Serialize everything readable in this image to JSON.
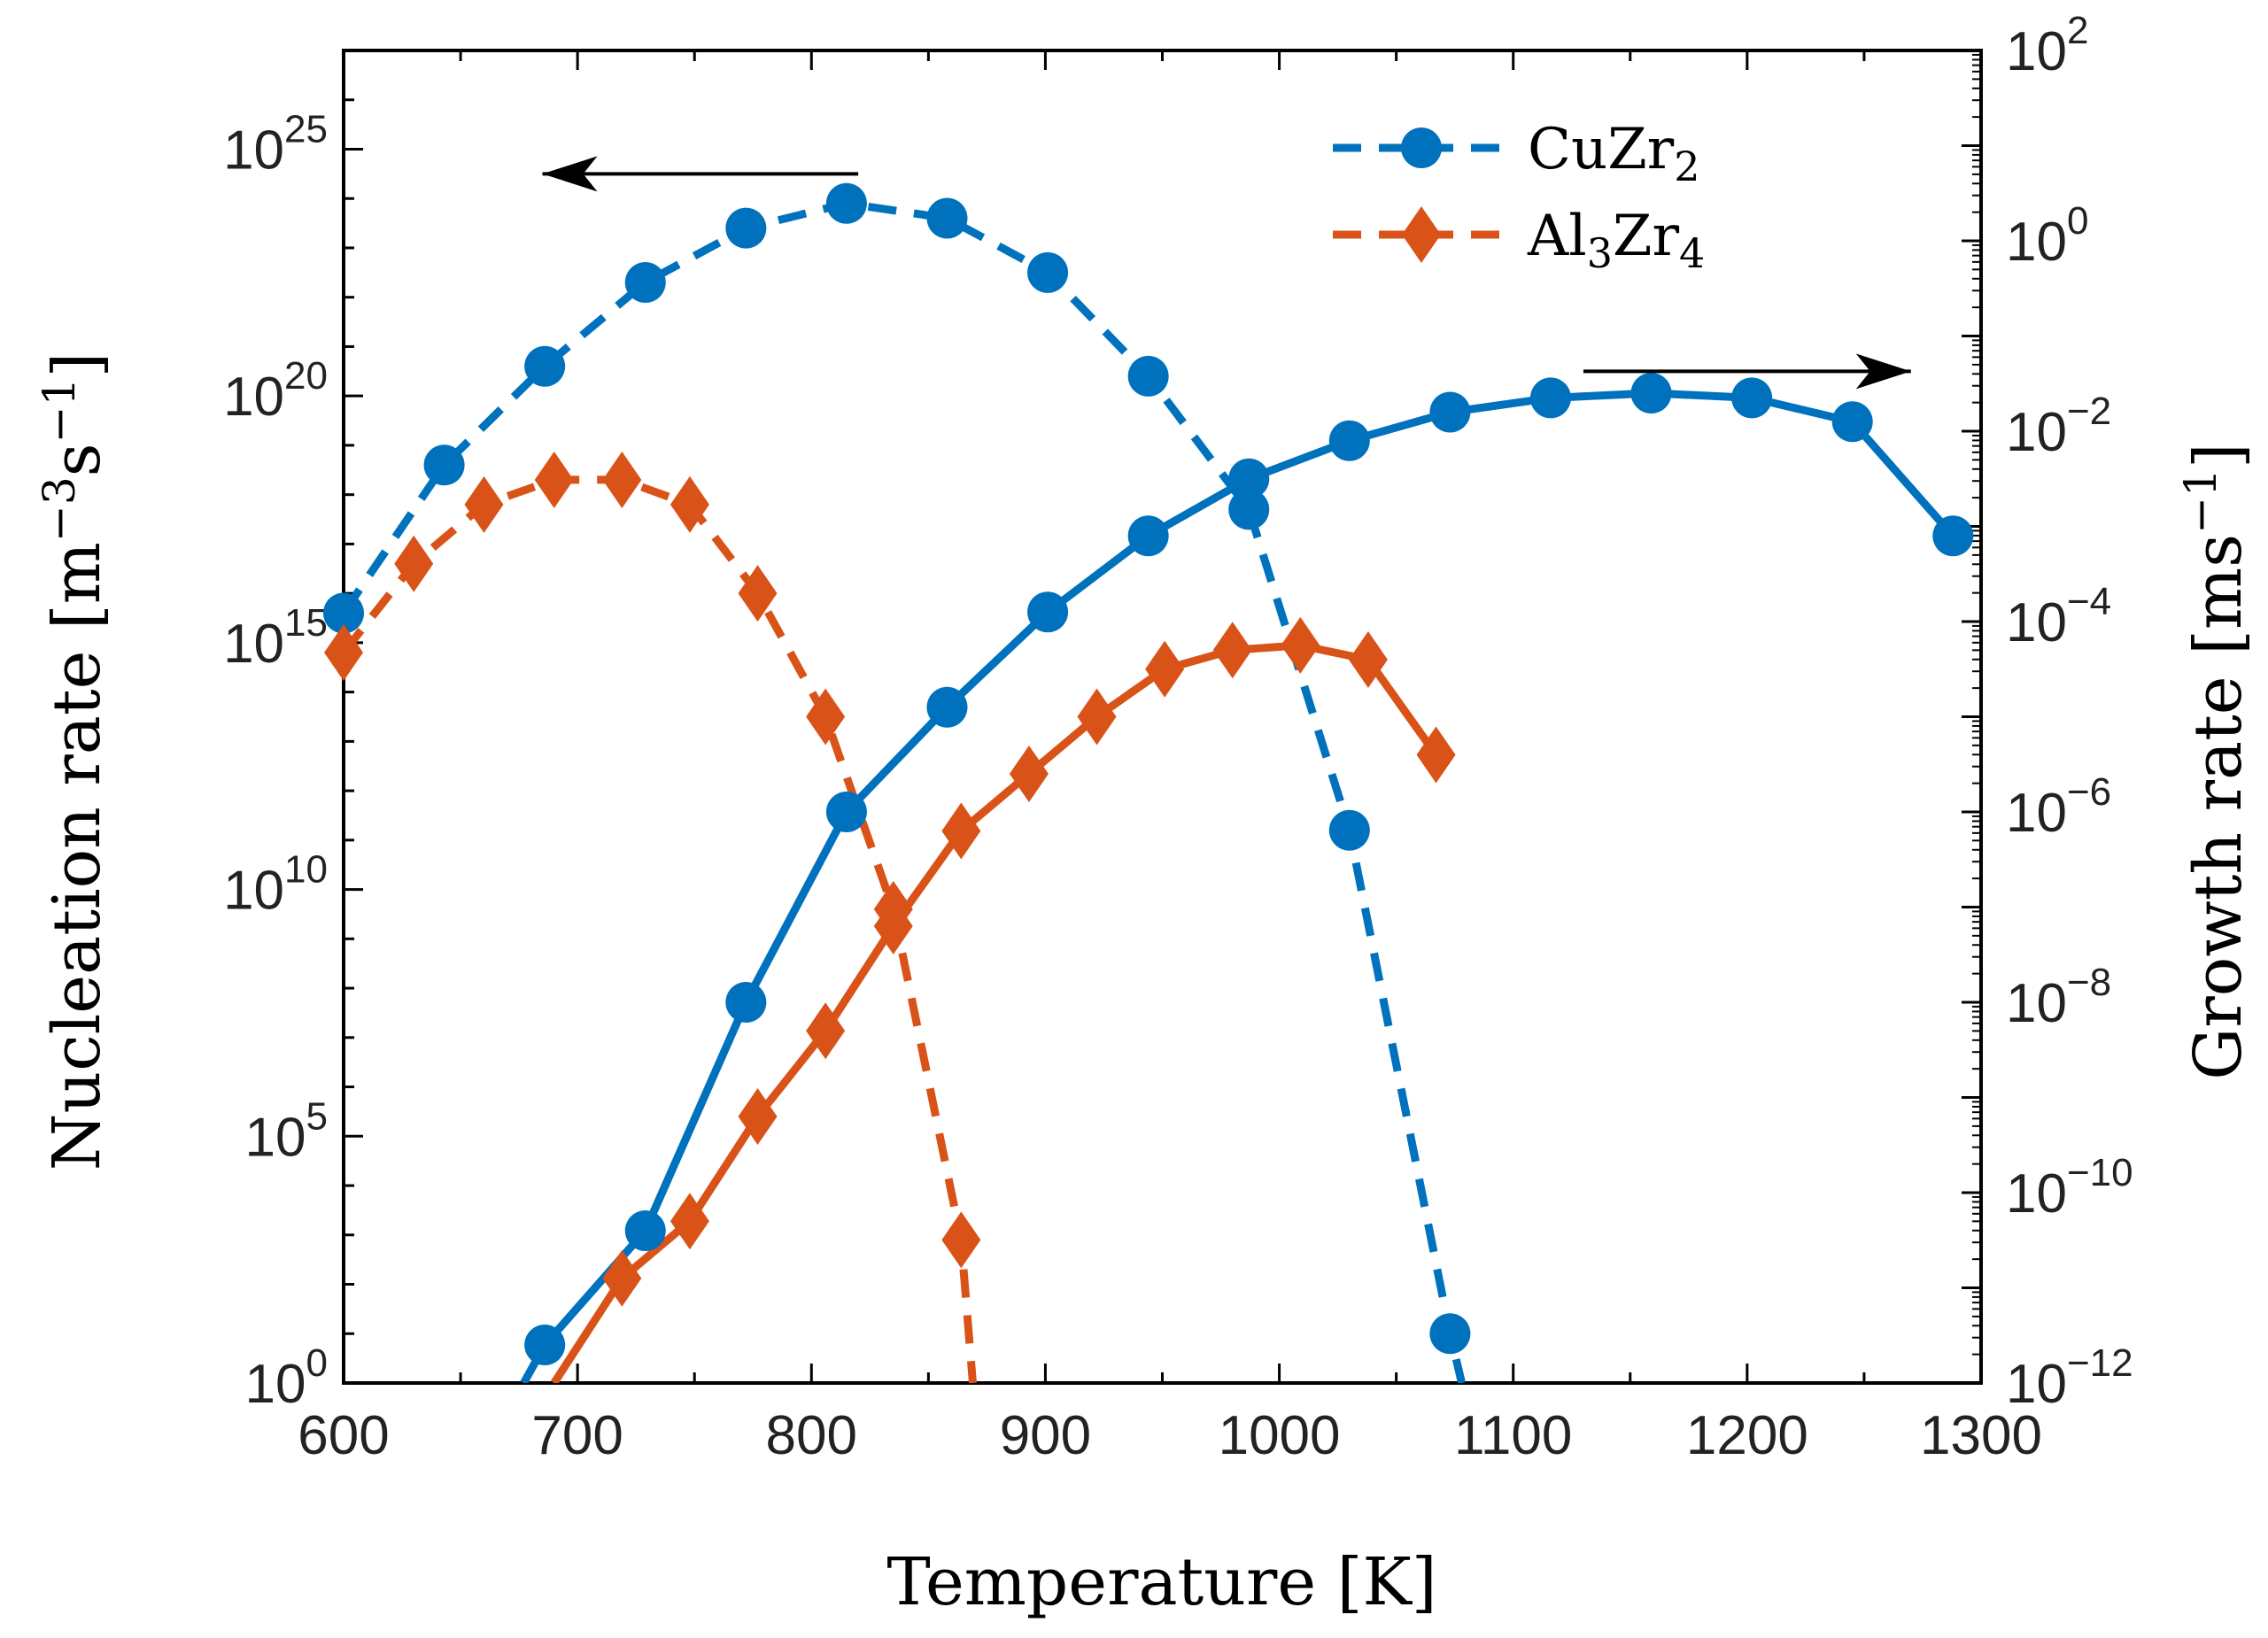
{
  "colors": {
    "cuzr2": "#0072BD",
    "al3zr4": "#D95319",
    "axis": "#000000"
  },
  "chart_data": {
    "type": "line",
    "xlabel": "Temperature [K]",
    "ylabel_left": {
      "base": "Nucleation rate [m",
      "sup1": "−3",
      "mid": "s",
      "sup2": "−1",
      "end": "]"
    },
    "ylabel_right": {
      "base": "Growth rate [ms",
      "sup1": "−1",
      "end": "]"
    },
    "xlim": [
      600,
      1300
    ],
    "ylim_left": [
      0,
      27
    ],
    "ylim_right": [
      -12,
      2
    ],
    "yscale": "log",
    "grid": false,
    "legend_position": "top-right",
    "x_ticks": [
      "600",
      "700",
      "800",
      "900",
      "1000",
      "1100",
      "1200",
      "1300"
    ],
    "y_ticks_left": [
      {
        "base": "10",
        "exp": "0",
        "value": 0
      },
      {
        "base": "10",
        "exp": "5",
        "value": 5
      },
      {
        "base": "10",
        "exp": "10",
        "value": 10
      },
      {
        "base": "10",
        "exp": "15",
        "value": 15
      },
      {
        "base": "10",
        "exp": "20",
        "value": 20
      },
      {
        "base": "10",
        "exp": "25",
        "value": 25
      }
    ],
    "y_ticks_right": [
      {
        "base": "10",
        "exp": "−12",
        "value": -12
      },
      {
        "base": "10",
        "exp": "−10",
        "value": -10
      },
      {
        "base": "10",
        "exp": "−8",
        "value": -8
      },
      {
        "base": "10",
        "exp": "−6",
        "value": -6
      },
      {
        "base": "10",
        "exp": "−4",
        "value": -4
      },
      {
        "base": "10",
        "exp": "−2",
        "value": -2
      },
      {
        "base": "10",
        "exp": "0",
        "value": 0
      },
      {
        "base": "10",
        "exp": "2",
        "value": 2
      }
    ],
    "legend": [
      {
        "label": "CuZr",
        "sub": "2",
        "series": "cuzr2"
      },
      {
        "label_parts": [
          "Al",
          "3",
          "Zr",
          "4"
        ],
        "series": "al3zr4"
      }
    ],
    "series": [
      {
        "name": "CuZr2",
        "kind": "nucleation",
        "axis": "left",
        "style": "dashed",
        "marker": "circle",
        "color_key": "cuzr2",
        "x": [
          600,
          643,
          686,
          729,
          772,
          815,
          858,
          901,
          944,
          987,
          1030,
          1073
        ],
        "log10_y": [
          15.6,
          18.6,
          20.6,
          22.3,
          23.4,
          23.9,
          23.6,
          22.5,
          20.4,
          17.7,
          11.2,
          1.0
        ],
        "extend_to_x": 1078
      },
      {
        "name": "Al3Zr4",
        "kind": "nucleation",
        "axis": "left",
        "style": "dashed",
        "marker": "diamond",
        "color_key": "al3zr4",
        "x": [
          600,
          630,
          660,
          690,
          719,
          748,
          777,
          806,
          835,
          864
        ],
        "log10_y": [
          14.8,
          16.6,
          17.8,
          18.3,
          18.3,
          17.8,
          16.0,
          13.5,
          9.6,
          2.9
        ],
        "extend_to_x": 869
      },
      {
        "name": "CuZr2",
        "kind": "growth",
        "axis": "right",
        "style": "solid",
        "marker": "circle",
        "color_key": "cuzr2",
        "x": [
          686,
          729,
          772,
          815,
          858,
          901,
          944,
          987,
          1030,
          1073,
          1116,
          1159,
          1202,
          1245,
          1288
        ],
        "log10_y": [
          -11.6,
          -10.4,
          -8.0,
          -6.0,
          -4.9,
          -3.9,
          -3.1,
          -2.5,
          -2.1,
          -1.8,
          -1.65,
          -1.6,
          -1.65,
          -1.9,
          -3.1
        ],
        "extend_from_x": 677
      },
      {
        "name": "Al3Zr4",
        "kind": "growth",
        "axis": "right",
        "style": "solid",
        "marker": "diamond",
        "color_key": "al3zr4",
        "x": [
          719,
          748,
          777,
          806,
          835,
          864,
          893,
          922,
          951,
          980,
          1009,
          1038,
          1067
        ],
        "log10_y": [
          -10.9,
          -10.3,
          -9.2,
          -8.3,
          -7.2,
          -6.2,
          -5.6,
          -5.0,
          -4.5,
          -4.3,
          -4.25,
          -4.4,
          -5.4
        ],
        "extend_from_x": 690
      }
    ],
    "annotations": [
      {
        "type": "arrow",
        "direction": "left",
        "from_x": 820,
        "to_x": 685,
        "log10_y_left": 24.5
      },
      {
        "type": "arrow",
        "direction": "right",
        "from_x": 1130,
        "to_x": 1270,
        "log10_y_left": 20.5
      }
    ]
  }
}
